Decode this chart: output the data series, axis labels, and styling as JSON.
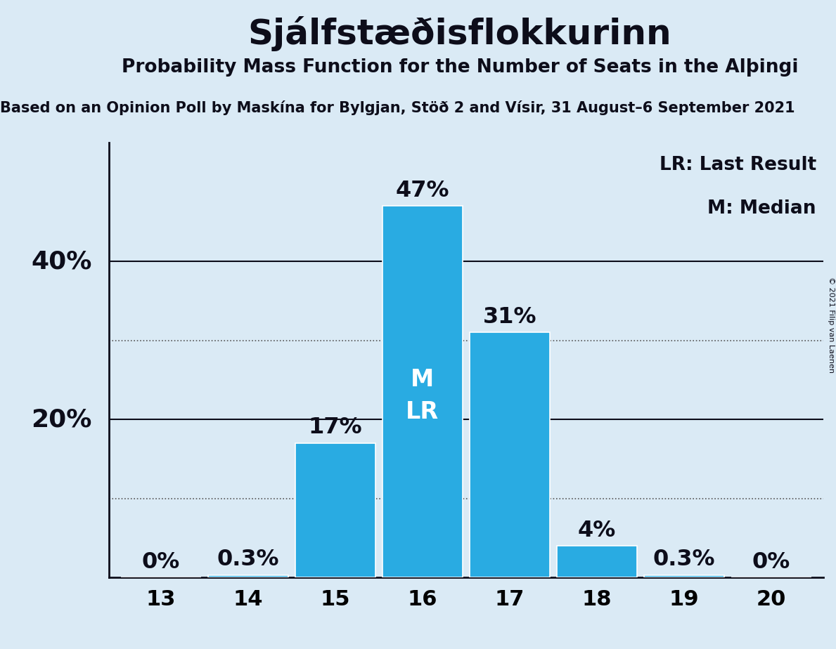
{
  "title": "Sjálfstæðisflokkurinn",
  "subtitle": "Probability Mass Function for the Number of Seats in the Alþingi",
  "subsubtitle": "Based on an Opinion Poll by Maskína for Bylgjan, Stöð 2 and Vísir, 31 August–6 September 2021",
  "copyright": "© 2021 Filip van Laenen",
  "seats": [
    13,
    14,
    15,
    16,
    17,
    18,
    19,
    20
  ],
  "values": [
    0.0,
    0.3,
    17.0,
    47.0,
    31.0,
    4.0,
    0.3,
    0.0
  ],
  "bar_color": "#29ABE2",
  "background_color": "#DAEAF5",
  "median_seat": 16,
  "last_result_seat": 16,
  "bar_label_color_dark": "#0d0d1a",
  "bar_label_color_light": "#ffffff",
  "legend_text_lr": "LR: Last Result",
  "legend_text_m": "M: Median",
  "ylim": [
    0,
    55
  ],
  "solid_line_color": "#0d0d1a",
  "dotted_line_color": "#555555",
  "title_fontsize": 36,
  "subtitle_fontsize": 19,
  "subsubtitle_fontsize": 15,
  "tick_fontsize": 22,
  "ytick_fontsize": 26,
  "legend_fontsize": 19,
  "bar_annotation_fontsize": 23,
  "bar_inner_fontsize": 24
}
